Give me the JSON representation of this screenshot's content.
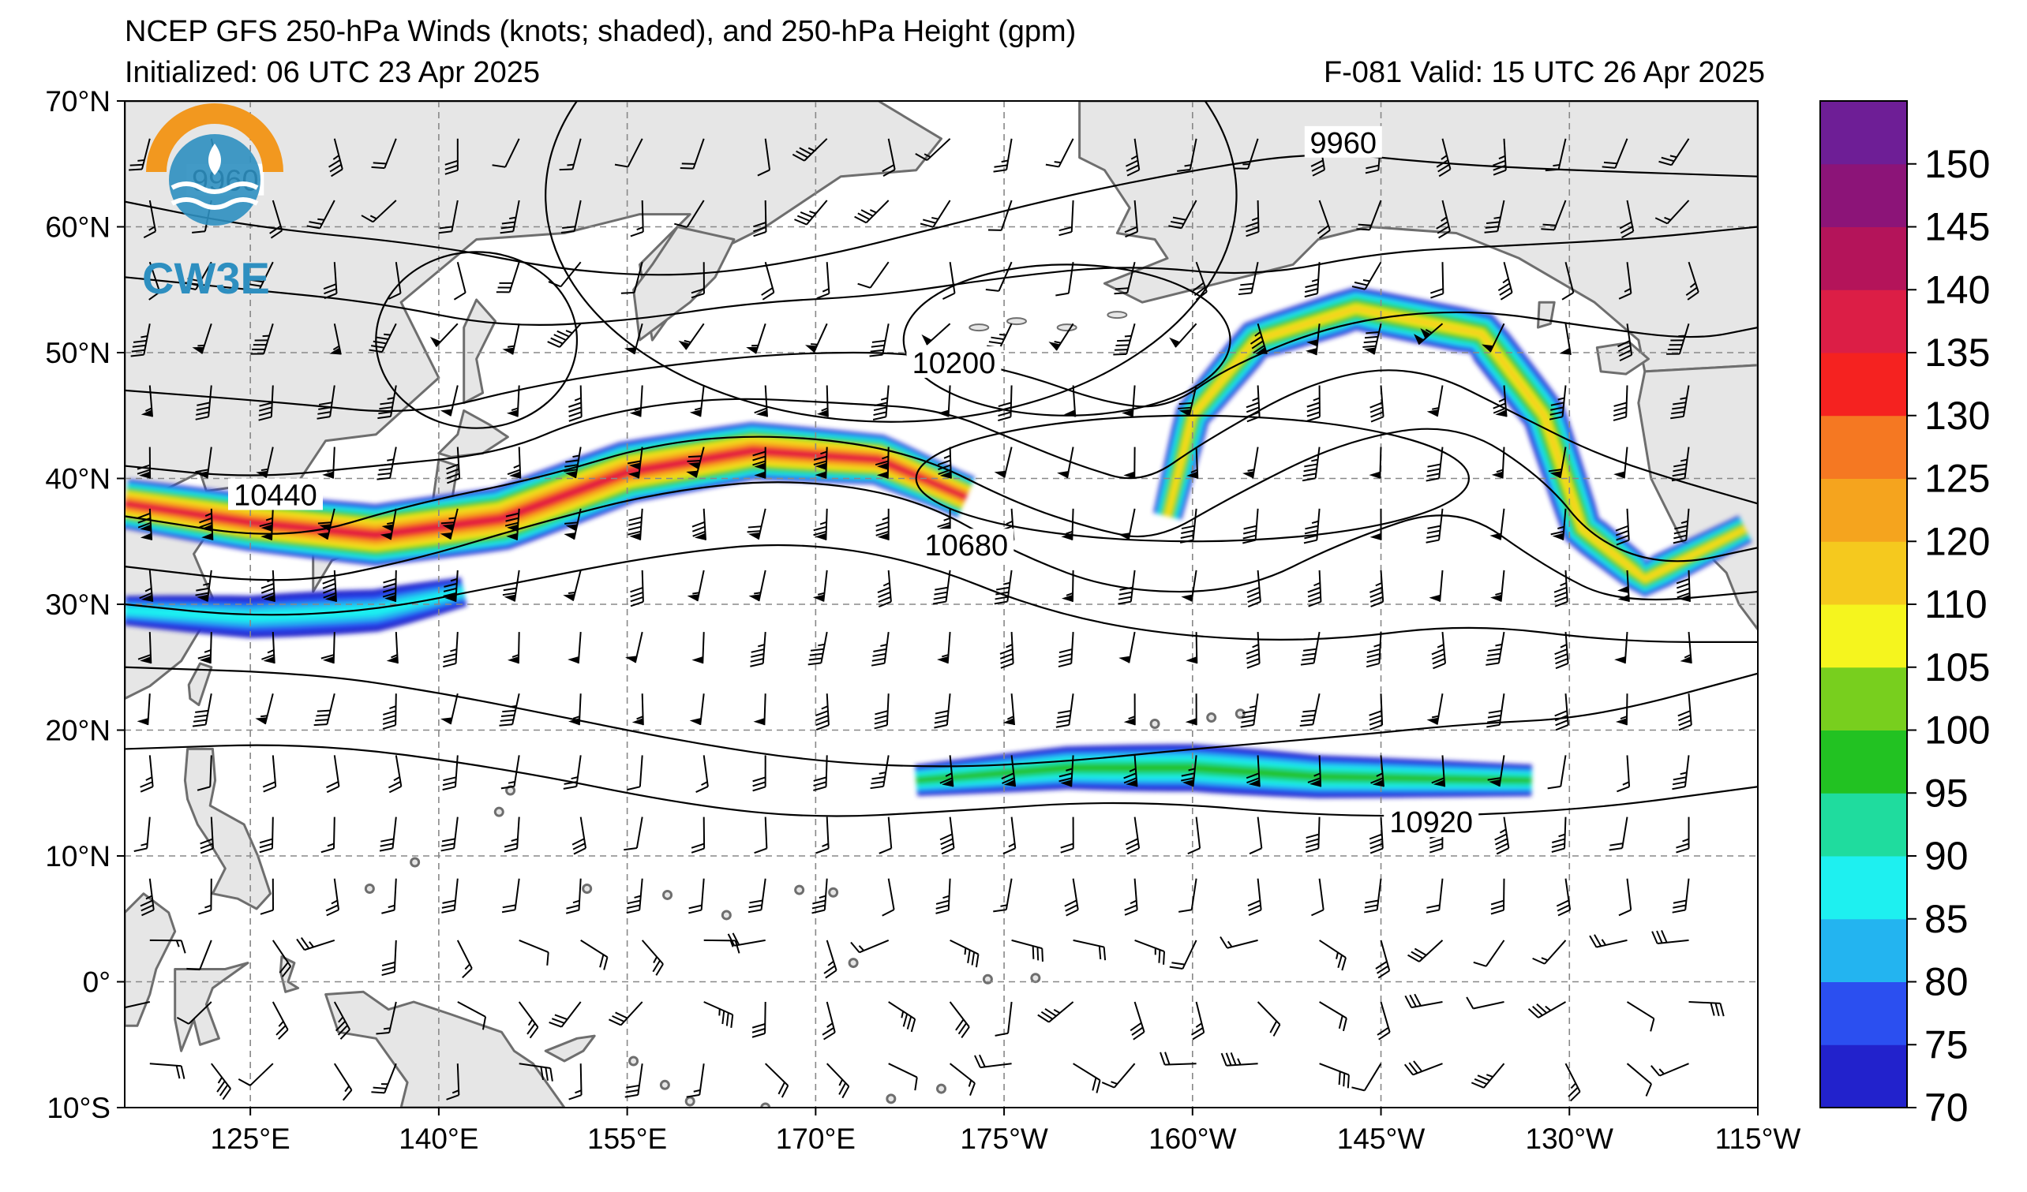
{
  "header": {
    "title": "NCEP GFS 250-hPa Winds (knots; shaded), and 250-hPa Height (gpm)",
    "initialized": "Initialized: 06 UTC 23 Apr 2025",
    "valid": "F-081  Valid: 15 UTC 26 Apr 2025"
  },
  "logo": {
    "text": "CW3E"
  },
  "map": {
    "projection": "equirectangular",
    "lon_range": [
      115,
      245
    ],
    "lat_range": [
      -10,
      70
    ],
    "lat_ticks": [
      {
        "lat": 70,
        "label": "70°N"
      },
      {
        "lat": 60,
        "label": "60°N"
      },
      {
        "lat": 50,
        "label": "50°N"
      },
      {
        "lat": 40,
        "label": "40°N"
      },
      {
        "lat": 30,
        "label": "30°N"
      },
      {
        "lat": 20,
        "label": "20°N"
      },
      {
        "lat": 10,
        "label": "10°N"
      },
      {
        "lat": 0,
        "label": "0°"
      },
      {
        "lat": -10,
        "label": "10°S"
      }
    ],
    "lon_ticks": [
      {
        "lon": 125,
        "label": "125°E"
      },
      {
        "lon": 140,
        "label": "140°E"
      },
      {
        "lon": 155,
        "label": "155°E"
      },
      {
        "lon": 170,
        "label": "170°E"
      },
      {
        "lon": 185,
        "label": "175°W"
      },
      {
        "lon": 200,
        "label": "160°W"
      },
      {
        "lon": 215,
        "label": "145°W"
      },
      {
        "lon": 230,
        "label": "130°W"
      },
      {
        "lon": 245,
        "label": "115°W"
      }
    ],
    "gridlines": true,
    "land_color": "#e6e6e6",
    "coast_color": "#6e6e6e"
  },
  "height_contours": {
    "units": "gpm",
    "labels": [
      {
        "value": "9960",
        "lon": 212,
        "lat": 66.5
      },
      {
        "value": "9960",
        "lon": 123,
        "lat": 63.5
      },
      {
        "value": "10200",
        "lon": 181,
        "lat": 49
      },
      {
        "value": "10440",
        "lon": 127,
        "lat": 38.5
      },
      {
        "value": "10680",
        "lon": 182,
        "lat": 34.5
      },
      {
        "value": "10920",
        "lon": 219,
        "lat": 12.5
      }
    ]
  },
  "jets": [
    {
      "name": "main",
      "lat_axis": [
        [
          115,
          38
        ],
        [
          125,
          36.5
        ],
        [
          135,
          35.5
        ],
        [
          145,
          36.8
        ],
        [
          155,
          40.5
        ],
        [
          165,
          42.2
        ],
        [
          175,
          41.5
        ],
        [
          182,
          38.5
        ]
      ],
      "peak_kt": 135
    },
    {
      "name": "subtropical",
      "lat_axis": [
        [
          115,
          29.5
        ],
        [
          125,
          29
        ],
        [
          135,
          29.5
        ],
        [
          142,
          31
        ]
      ],
      "peak_kt": 85
    },
    {
      "name": "alaska",
      "lat_axis": [
        [
          198,
          37
        ],
        [
          200,
          45
        ],
        [
          205,
          51
        ],
        [
          213,
          53.5
        ],
        [
          223,
          51.5
        ],
        [
          228,
          45
        ],
        [
          231,
          36
        ],
        [
          236,
          32
        ],
        [
          244,
          36
        ]
      ],
      "peak_kt": 110
    },
    {
      "name": "tropical",
      "lat_axis": [
        [
          178,
          16
        ],
        [
          190,
          17
        ],
        [
          200,
          17
        ],
        [
          210,
          16.3
        ],
        [
          227,
          16
        ]
      ],
      "peak_kt": 95
    }
  ],
  "colorbar": {
    "units": "knots",
    "levels": [
      70,
      75,
      80,
      85,
      90,
      95,
      100,
      105,
      110,
      120,
      125,
      130,
      135,
      140,
      145,
      150,
      155
    ],
    "colors": [
      "#2222cc",
      "#2b4ff0",
      "#23b4f0",
      "#1ef0f0",
      "#1fdc9e",
      "#22c222",
      "#78cf1e",
      "#f5f51e",
      "#f5c91e",
      "#f5a41e",
      "#f57822",
      "#f52220",
      "#dc1e46",
      "#b4145a",
      "#8c1478",
      "#6e1e96"
    ],
    "labels": [
      "70",
      "75",
      "80",
      "85",
      "90",
      "95",
      "100",
      "105",
      "110",
      "120",
      "125",
      "130",
      "135",
      "140",
      "145",
      "150"
    ]
  }
}
